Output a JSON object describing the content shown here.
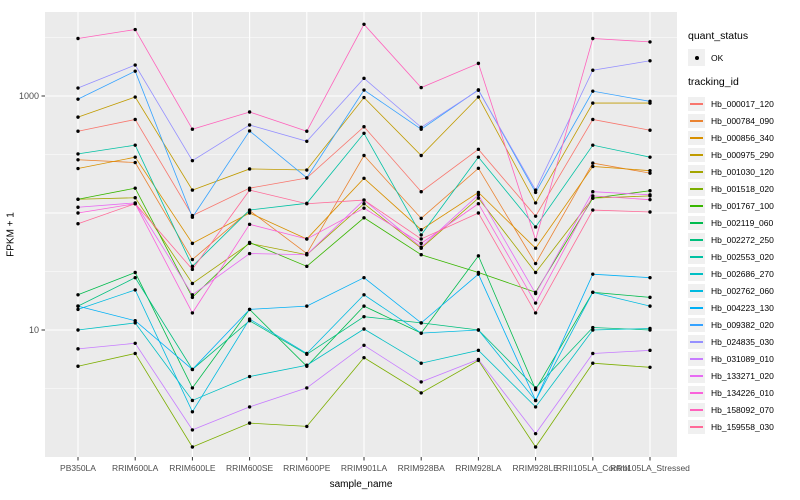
{
  "colors": {
    "panel_background": "#EBEBEB",
    "gridline": "#FFFFFF",
    "axis_text": "#4D4D4D",
    "tick_mark": "#333333",
    "point": "#000000",
    "legend_key_background": "#F0F0F0"
  },
  "legend": {
    "quant_status": {
      "title": "quant_status",
      "items": [
        {
          "label": "OK",
          "marker": "black-point"
        }
      ]
    },
    "tracking_id": {
      "title": "tracking_id"
    }
  },
  "chart_data": {
    "type": "line",
    "title": "",
    "xlabel": "sample_name",
    "ylabel": "FPKM + 1",
    "legend_position": "right",
    "grid": "white major and minor gridlines on gray panel",
    "y_axis": {
      "scale": "log10",
      "range": [
        0.82,
        5200
      ],
      "ticks": [
        {
          "label": "1000",
          "value": 1000
        },
        {
          "label": "10",
          "value": 10
        }
      ],
      "major_gridlines": [
        10,
        100,
        1000
      ],
      "minor_gridlines": [
        3.162,
        31.62,
        316.2,
        3162
      ]
    },
    "categories": [
      "PB350LA",
      "RRIM600LA",
      "RRIM600LE",
      "RRIM600SE",
      "RRIM600PE",
      "RRIM901LA",
      "RRIM928BA",
      "RRIM928LA",
      "RRIM928LE",
      "RRII105LA_Control",
      "RRII105LA_Stressed"
    ],
    "series": [
      {
        "name": "Hb_000017_120",
        "color": "#F8766D",
        "values": [
          500,
          630,
          95,
          163,
          199,
          546,
          152,
          350,
          94,
          630,
          510
        ]
      },
      {
        "name": "Hb_000784_090",
        "color": "#EA8331",
        "values": [
          285,
          270,
          40,
          105,
          45,
          310,
          90,
          241,
          37,
          267,
          219
        ]
      },
      {
        "name": "Hb_000856_340",
        "color": "#D89000",
        "values": [
          240,
          300,
          55,
          100,
          60,
          198,
          72,
          150,
          50,
          250,
          230
        ]
      },
      {
        "name": "Hb_000975_290",
        "color": "#C09B00",
        "values": [
          660,
          980,
          157,
          238,
          233,
          970,
          310,
          980,
          122,
          870,
          870
        ]
      },
      {
        "name": "Hb_001030_120",
        "color": "#A3A500",
        "values": [
          131,
          135,
          25,
          55,
          44,
          120,
          50,
          134,
          31,
          134,
          140
        ]
      },
      {
        "name": "Hb_001518_020",
        "color": "#7CAE00",
        "values": [
          4.9,
          6.3,
          1.0,
          1.6,
          1.5,
          5.8,
          2.9,
          5.5,
          1.0,
          5.2,
          4.8
        ]
      },
      {
        "name": "Hb_001767_100",
        "color": "#39B600",
        "values": [
          131,
          163,
          19,
          56,
          35,
          91,
          44,
          31,
          21,
          134,
          155
        ]
      },
      {
        "name": "Hb_002119_060",
        "color": "#00BB4E",
        "values": [
          20,
          31,
          3.2,
          15,
          4.9,
          16,
          9.4,
          43,
          3.1,
          21,
          19
        ]
      },
      {
        "name": "Hb_002272_250",
        "color": "#00BF7D",
        "values": [
          16,
          28,
          4.6,
          12,
          6.2,
          13,
          11.5,
          10,
          3.2,
          10.5,
          10
        ]
      },
      {
        "name": "Hb_002553_020",
        "color": "#00C1A3",
        "values": [
          320,
          380,
          35,
          106,
          121,
          480,
          65,
          300,
          76,
          380,
          300
        ]
      },
      {
        "name": "Hb_002686_270",
        "color": "#00BFC4",
        "values": [
          10,
          11.5,
          2.5,
          4.0,
          5.0,
          10.2,
          5.2,
          6.7,
          2.2,
          10.0,
          10.3
        ]
      },
      {
        "name": "Hb_002762_060",
        "color": "#00BAE0",
        "values": [
          15,
          22,
          2.0,
          12.4,
          6.3,
          20,
          9.4,
          10,
          2.5,
          21,
          16
        ]
      },
      {
        "name": "Hb_004223_130",
        "color": "#00B0F6",
        "values": [
          16,
          12,
          4.6,
          15,
          16,
          28,
          11.5,
          30,
          2.5,
          30,
          28
        ]
      },
      {
        "name": "Hb_009382_020",
        "color": "#35A2FF",
        "values": [
          940,
          1630,
          92,
          503,
          200,
          1124,
          520,
          1130,
          150,
          1100,
          900
        ]
      },
      {
        "name": "Hb_024835_030",
        "color": "#9590FF",
        "values": [
          1170,
          1840,
          280,
          565,
          410,
          1416,
          540,
          1120,
          157,
          1660,
          2000
        ]
      },
      {
        "name": "Hb_031089_010",
        "color": "#C77CFF",
        "values": [
          6.9,
          7.7,
          1.4,
          2.2,
          3.2,
          7.4,
          3.6,
          5.6,
          1.3,
          6.3,
          6.7
        ]
      },
      {
        "name": "Hb_133271_020",
        "color": "#E76BF3",
        "values": [
          112,
          122,
          20,
          45,
          44,
          129,
          51,
          143,
          20.5,
          152,
          143
        ]
      },
      {
        "name": "Hb_134226_010",
        "color": "#FA62DB",
        "values": [
          100,
          120,
          14,
          80,
          60,
          110,
          55,
          120,
          17,
          140,
          130
        ]
      },
      {
        "name": "Hb_158092_070",
        "color": "#FF62BC",
        "values": [
          3100,
          3700,
          520,
          730,
          500,
          4100,
          1180,
          1900,
          59,
          3100,
          2900
        ]
      },
      {
        "name": "Hb_159558_030",
        "color": "#FF6A98",
        "values": [
          81,
          120,
          33,
          157,
          120,
          129,
          60,
          100,
          14,
          106,
          102
        ]
      }
    ]
  }
}
